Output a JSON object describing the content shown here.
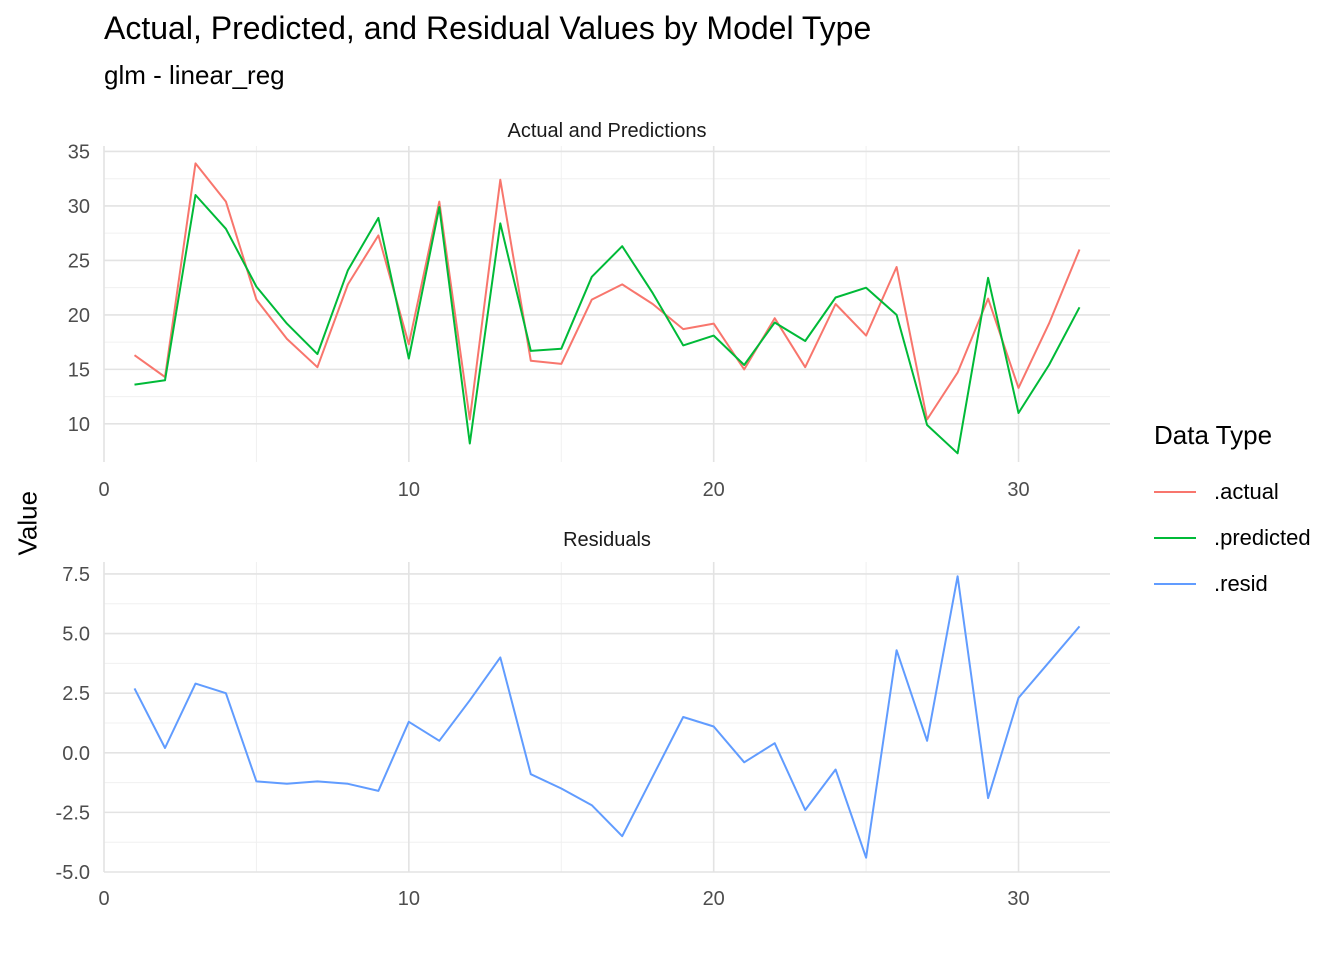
{
  "title": "Actual, Predicted, and Residual Values by Model Type",
  "subtitle": "glm - linear_reg",
  "ylabel": "Value",
  "legend": {
    "title": "Data Type",
    "items": [
      {
        "label": ".actual",
        "color": "#F8766D"
      },
      {
        "label": ".predicted",
        "color": "#00BA38"
      },
      {
        "label": ".resid",
        "color": "#619CFF"
      }
    ]
  },
  "chart_data": [
    {
      "type": "line",
      "title": "Actual and Predictions",
      "x": [
        1,
        2,
        3,
        4,
        5,
        6,
        7,
        8,
        9,
        10,
        11,
        12,
        13,
        14,
        15,
        16,
        17,
        18,
        19,
        20,
        21,
        22,
        23,
        24,
        25,
        26,
        27,
        28,
        29,
        30,
        31,
        32
      ],
      "series": [
        {
          "name": ".actual",
          "color": "#F8766D",
          "values": [
            16.3,
            14.3,
            33.9,
            30.4,
            21.4,
            17.8,
            15.2,
            22.8,
            27.3,
            17.3,
            30.4,
            10.4,
            32.4,
            15.8,
            15.5,
            21.4,
            22.8,
            21.0,
            18.7,
            19.2,
            15.0,
            19.7,
            15.2,
            21.0,
            18.1,
            24.4,
            10.4,
            14.7,
            21.5,
            13.3,
            19.2,
            26.0
          ]
        },
        {
          "name": ".predicted",
          "color": "#00BA38",
          "values": [
            13.6,
            14.0,
            31.0,
            27.9,
            22.6,
            19.2,
            16.4,
            24.1,
            28.9,
            16.0,
            29.9,
            8.2,
            28.4,
            16.7,
            16.9,
            23.5,
            26.3,
            22.0,
            17.2,
            18.1,
            15.4,
            19.3,
            17.6,
            21.6,
            22.5,
            20.0,
            9.9,
            7.3,
            23.4,
            11.0,
            15.4,
            20.7
          ]
        }
      ],
      "xlim": [
        0,
        33
      ],
      "ylim": [
        6.5,
        35.5
      ],
      "xticks": [
        0,
        10,
        20,
        30
      ],
      "yticks": [
        10,
        15,
        20,
        25,
        30,
        35
      ],
      "grid": true
    },
    {
      "type": "line",
      "title": "Residuals",
      "x": [
        1,
        2,
        3,
        4,
        5,
        6,
        7,
        8,
        9,
        10,
        11,
        12,
        13,
        14,
        15,
        16,
        17,
        18,
        19,
        20,
        21,
        22,
        23,
        24,
        25,
        26,
        27,
        28,
        29,
        30,
        31,
        32
      ],
      "series": [
        {
          "name": ".resid",
          "color": "#619CFF",
          "values": [
            2.7,
            0.2,
            2.9,
            2.5,
            -1.2,
            -1.3,
            -1.2,
            -1.3,
            -1.6,
            1.3,
            0.5,
            2.2,
            4.0,
            -0.9,
            -1.5,
            -2.2,
            -3.5,
            -1.0,
            1.5,
            1.1,
            -0.4,
            0.4,
            -2.4,
            -0.7,
            -4.4,
            4.3,
            0.5,
            7.4,
            -1.9,
            2.3,
            3.8,
            5.3
          ]
        }
      ],
      "xlim": [
        0,
        33
      ],
      "ylim": [
        -5.0,
        8.0
      ],
      "xticks": [
        0,
        10,
        20,
        30
      ],
      "yticks": [
        "7.5",
        "5.0",
        "2.5",
        "0.0",
        "-2.5",
        "-5.0"
      ],
      "grid": true
    }
  ]
}
